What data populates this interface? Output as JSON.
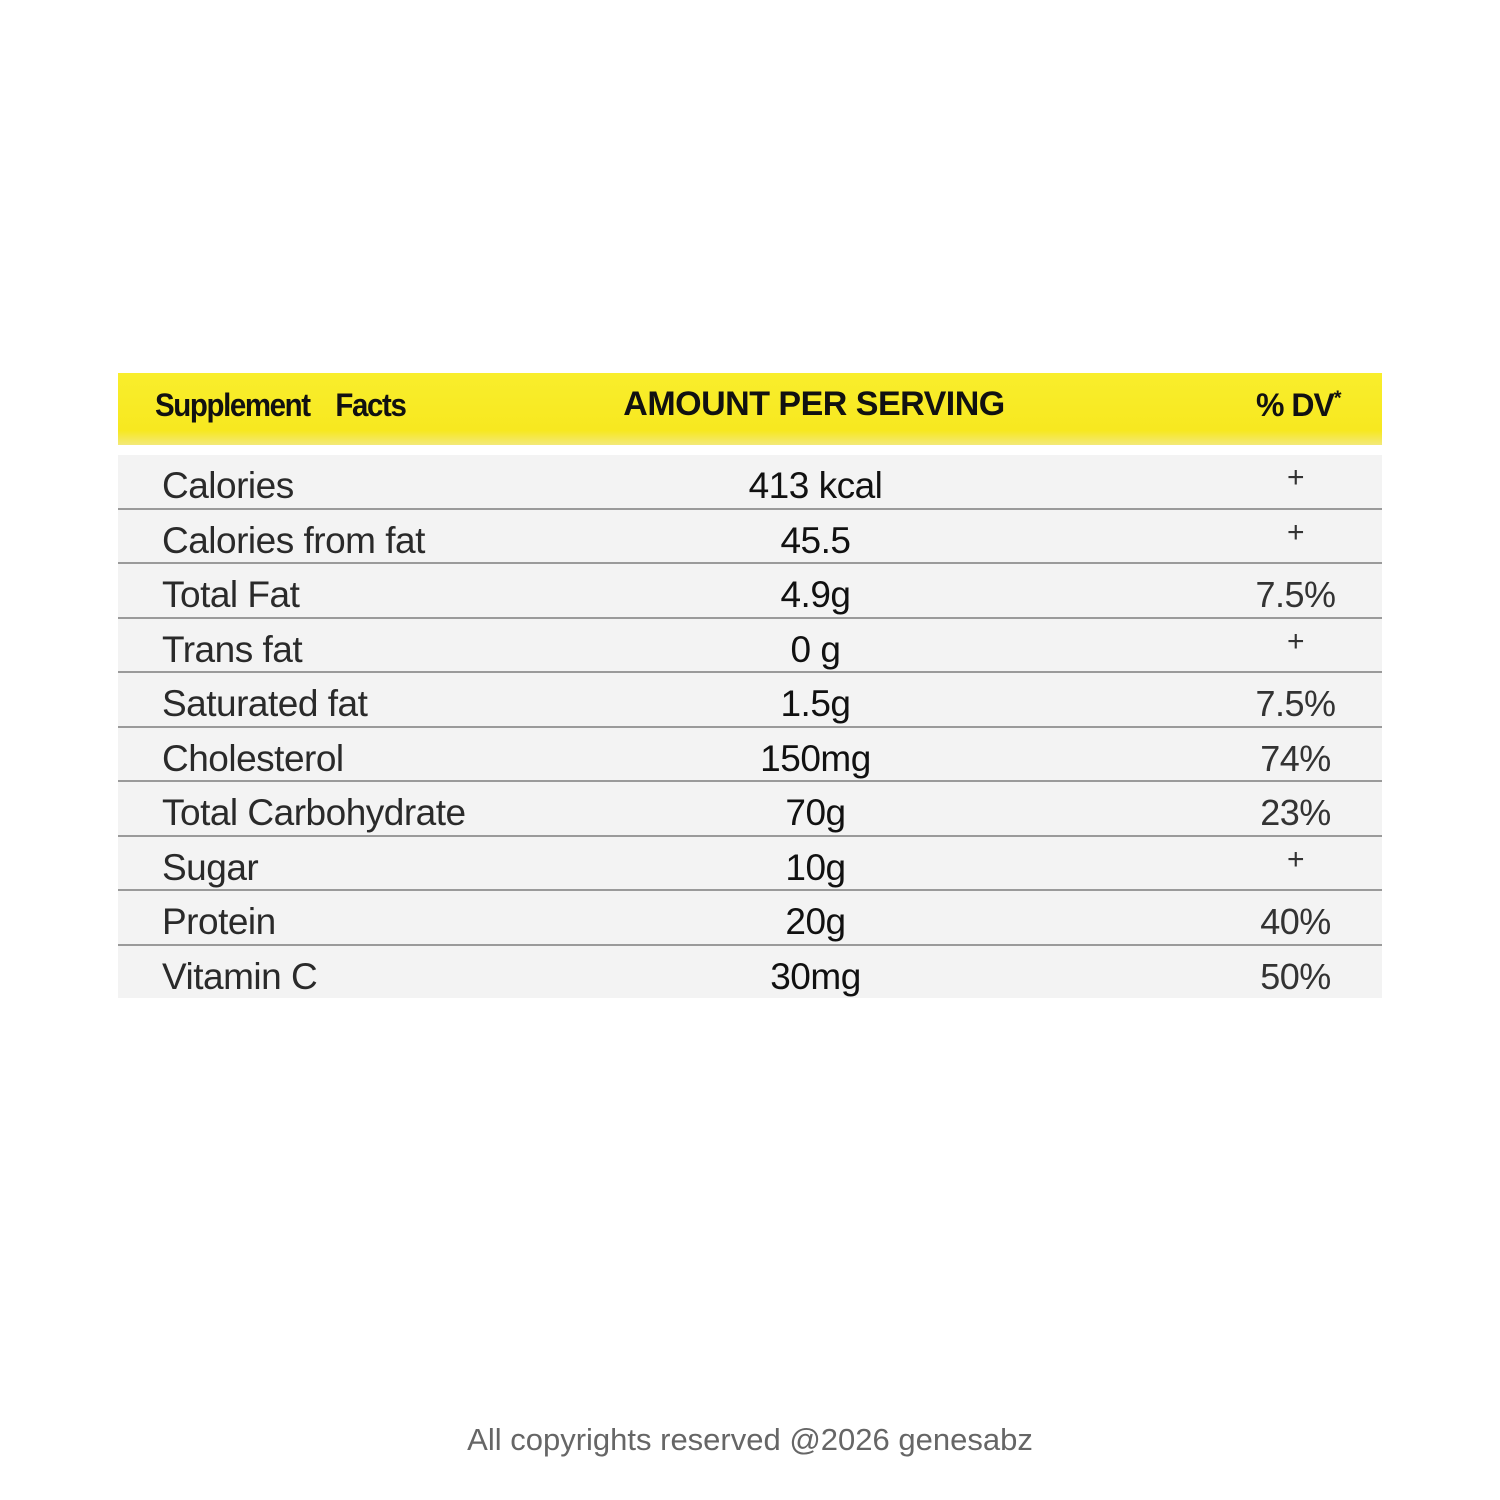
{
  "header": {
    "supplement": "Supplement",
    "facts": "Facts",
    "amount": "AMOUNT PER SERVING",
    "dv": "% DV",
    "dv_mark": "*"
  },
  "rows": [
    {
      "name": "Calories",
      "amount": "413 kcal",
      "dv": "+"
    },
    {
      "name": "Calories from fat",
      "amount": "45.5",
      "dv": "+"
    },
    {
      "name": "Total  Fat",
      "amount": "4.9g",
      "dv": "7.5%"
    },
    {
      "name": "Trans fat",
      "amount": "0 g",
      "dv": "+"
    },
    {
      "name": "Saturated fat",
      "amount": "1.5g",
      "dv": "7.5%"
    },
    {
      "name": "Cholesterol",
      "amount": "150mg",
      "dv": "74%"
    },
    {
      "name": "Total  Carbohydrate",
      "amount": "70g",
      "dv": "23%"
    },
    {
      "name": "Sugar",
      "amount": "10g",
      "dv": "+"
    },
    {
      "name": "Protein",
      "amount": "20g",
      "dv": "40%"
    },
    {
      "name": "Vitamin C",
      "amount": "30mg",
      "dv": "50%"
    }
  ],
  "footer": "All copyrights reserved @2026 genesabz",
  "colors": {
    "header_bg": "#f8ea1f",
    "row_bg": "#f3f3f3"
  }
}
